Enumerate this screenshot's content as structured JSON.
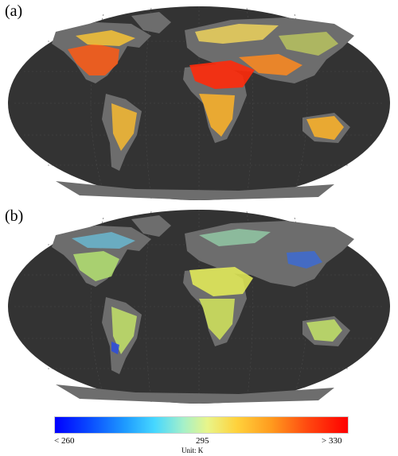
{
  "panels": [
    {
      "label": "(a)",
      "description_icon": "world-map-robinson",
      "ocean_color": "#333333",
      "land_color": "#6d6d6d"
    },
    {
      "label": "(b)",
      "description_icon": "world-map-robinson",
      "ocean_color": "#333333",
      "land_color": "#6d6d6d"
    }
  ],
  "colorbar": {
    "min_label": "< 260",
    "mid_label": "295",
    "max_label": "> 330",
    "unit_label": "Unit: K",
    "min_value": 260,
    "mid_value": 295,
    "max_value": 330,
    "colors": [
      "#0000ff",
      "#1e9bff",
      "#46d7ff",
      "#e8f58a",
      "#ffd23c",
      "#ff9a1e",
      "#ff0000"
    ]
  }
}
